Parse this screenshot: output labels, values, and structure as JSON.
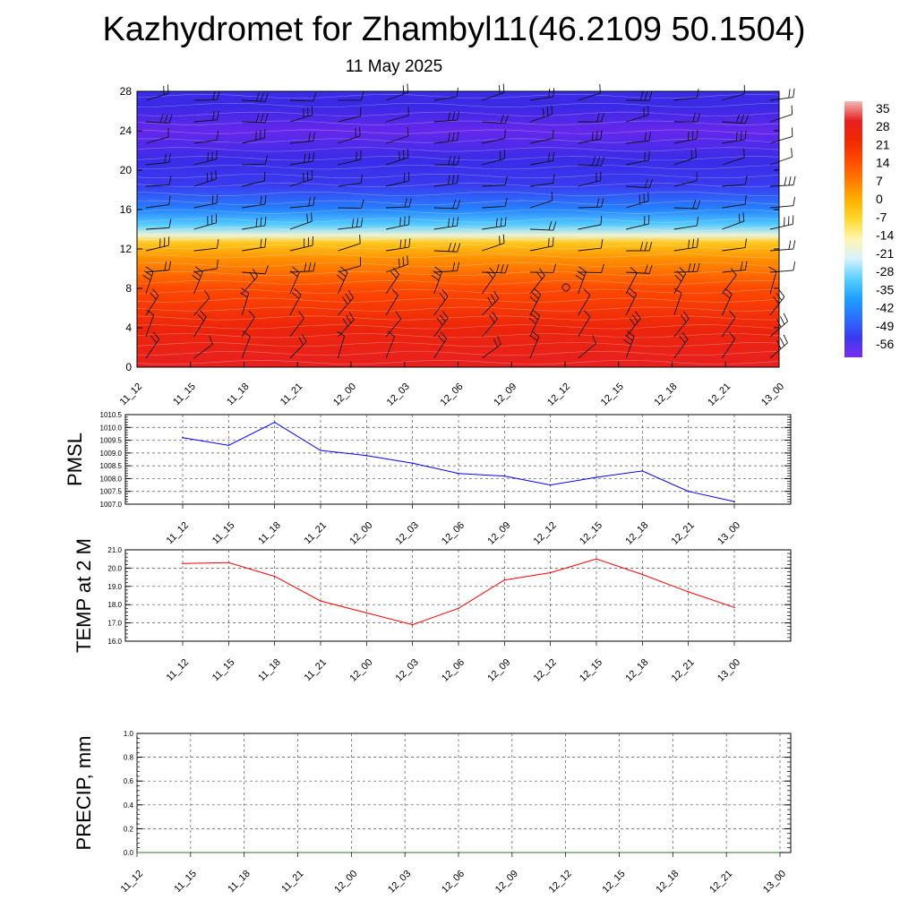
{
  "header": {
    "title": "Kazhydromet for Zhambyl11(46.2109 50.1504)",
    "date": "11 May 2025"
  },
  "chart_data": [
    {
      "type": "heatmap",
      "name": "vertical-temperature-wind-section",
      "x_ticks": [
        "11_12",
        "11_15",
        "11_18",
        "11_21",
        "12_00",
        "12_03",
        "12_06",
        "12_09",
        "12_12",
        "12_15",
        "12_18",
        "12_21",
        "13_00"
      ],
      "y_ticks": [
        0,
        4,
        8,
        12,
        16,
        20,
        24,
        28
      ],
      "ylim": [
        0,
        28
      ],
      "colorbar": {
        "labels": [
          "35",
          "28",
          "21",
          "14",
          "7",
          "0",
          "-7",
          "-14",
          "-21",
          "-28",
          "-35",
          "-42",
          "-49",
          "-56"
        ],
        "colors": [
          "#f4b8b8",
          "#e82020",
          "#f02800",
          "#ff4a00",
          "#ff7a00",
          "#ffb000",
          "#ffd830",
          "#fff5b0",
          "#d6f2ff",
          "#5ad0ff",
          "#1ea0ff",
          "#2a6fff",
          "#3a3af0",
          "#7b2cf0"
        ]
      },
      "temperature_profile": [
        {
          "level": 0,
          "temp": 30
        },
        {
          "level": 4,
          "temp": 24
        },
        {
          "level": 8,
          "temp": 14
        },
        {
          "level": 11,
          "temp": 5
        },
        {
          "level": 12.6,
          "temp": -3
        },
        {
          "level": 13.4,
          "temp": -14
        },
        {
          "level": 14.5,
          "temp": -25
        },
        {
          "level": 16,
          "temp": -38
        },
        {
          "level": 18.5,
          "temp": -52
        },
        {
          "level": 21,
          "temp": -56
        },
        {
          "level": 24,
          "temp": -62
        },
        {
          "level": 26.5,
          "temp": -57
        },
        {
          "level": 28,
          "temp": -56
        }
      ]
    },
    {
      "type": "line",
      "ylabel": "PMSL",
      "x": [
        "11_12",
        "11_15",
        "11_18",
        "11_21",
        "12_00",
        "12_03",
        "12_06",
        "12_09",
        "12_12",
        "12_15",
        "12_18",
        "12_21",
        "13_00"
      ],
      "series": [
        {
          "values": [
            1009.6,
            1009.3,
            1010.2,
            1009.1,
            1008.9,
            1008.6,
            1008.2,
            1008.1,
            1007.75,
            1008.05,
            1008.3,
            1007.5,
            1007.1
          ],
          "color": "#0000ff"
        }
      ],
      "ylim": [
        1007.0,
        1010.5
      ],
      "y_ticks": [
        "1010.5",
        "1010.0",
        "1009.5",
        "1009.0",
        "1008.5",
        "1008.0",
        "1007.5",
        "1007.0"
      ],
      "grid": true
    },
    {
      "type": "line",
      "ylabel": "TEMP at 2 M",
      "x": [
        "11_12",
        "11_15",
        "11_18",
        "11_21",
        "12_00",
        "12_03",
        "12_06",
        "12_09",
        "12_12",
        "12_15",
        "12_18",
        "12_21",
        "13_00"
      ],
      "series": [
        {
          "values": [
            20.25,
            20.3,
            19.55,
            18.2,
            17.55,
            16.9,
            17.8,
            19.35,
            19.75,
            20.5,
            19.65,
            18.7,
            17.85
          ],
          "color": "#ff0000"
        }
      ],
      "ylim": [
        16.0,
        21.0
      ],
      "y_ticks": [
        "21.0",
        "20.0",
        "19.0",
        "18.0",
        "17.0",
        "16.0"
      ],
      "grid": true
    },
    {
      "type": "line",
      "ylabel": "PRECIP, mm",
      "x": [
        "11_12",
        "11_15",
        "11_18",
        "11_21",
        "12_00",
        "12_03",
        "12_06",
        "12_09",
        "12_12",
        "12_15",
        "12_18",
        "12_21",
        "13_00"
      ],
      "series": [
        {
          "values": [
            0,
            0,
            0,
            0,
            0,
            0,
            0,
            0,
            0,
            0,
            0,
            0,
            0
          ],
          "color": "#2a7a2a"
        }
      ],
      "ylim": [
        0.0,
        1.0
      ],
      "y_ticks": [
        "1.0",
        "0.8",
        "0.6",
        "0.4",
        "0.2",
        "0.0"
      ],
      "grid": true
    }
  ]
}
